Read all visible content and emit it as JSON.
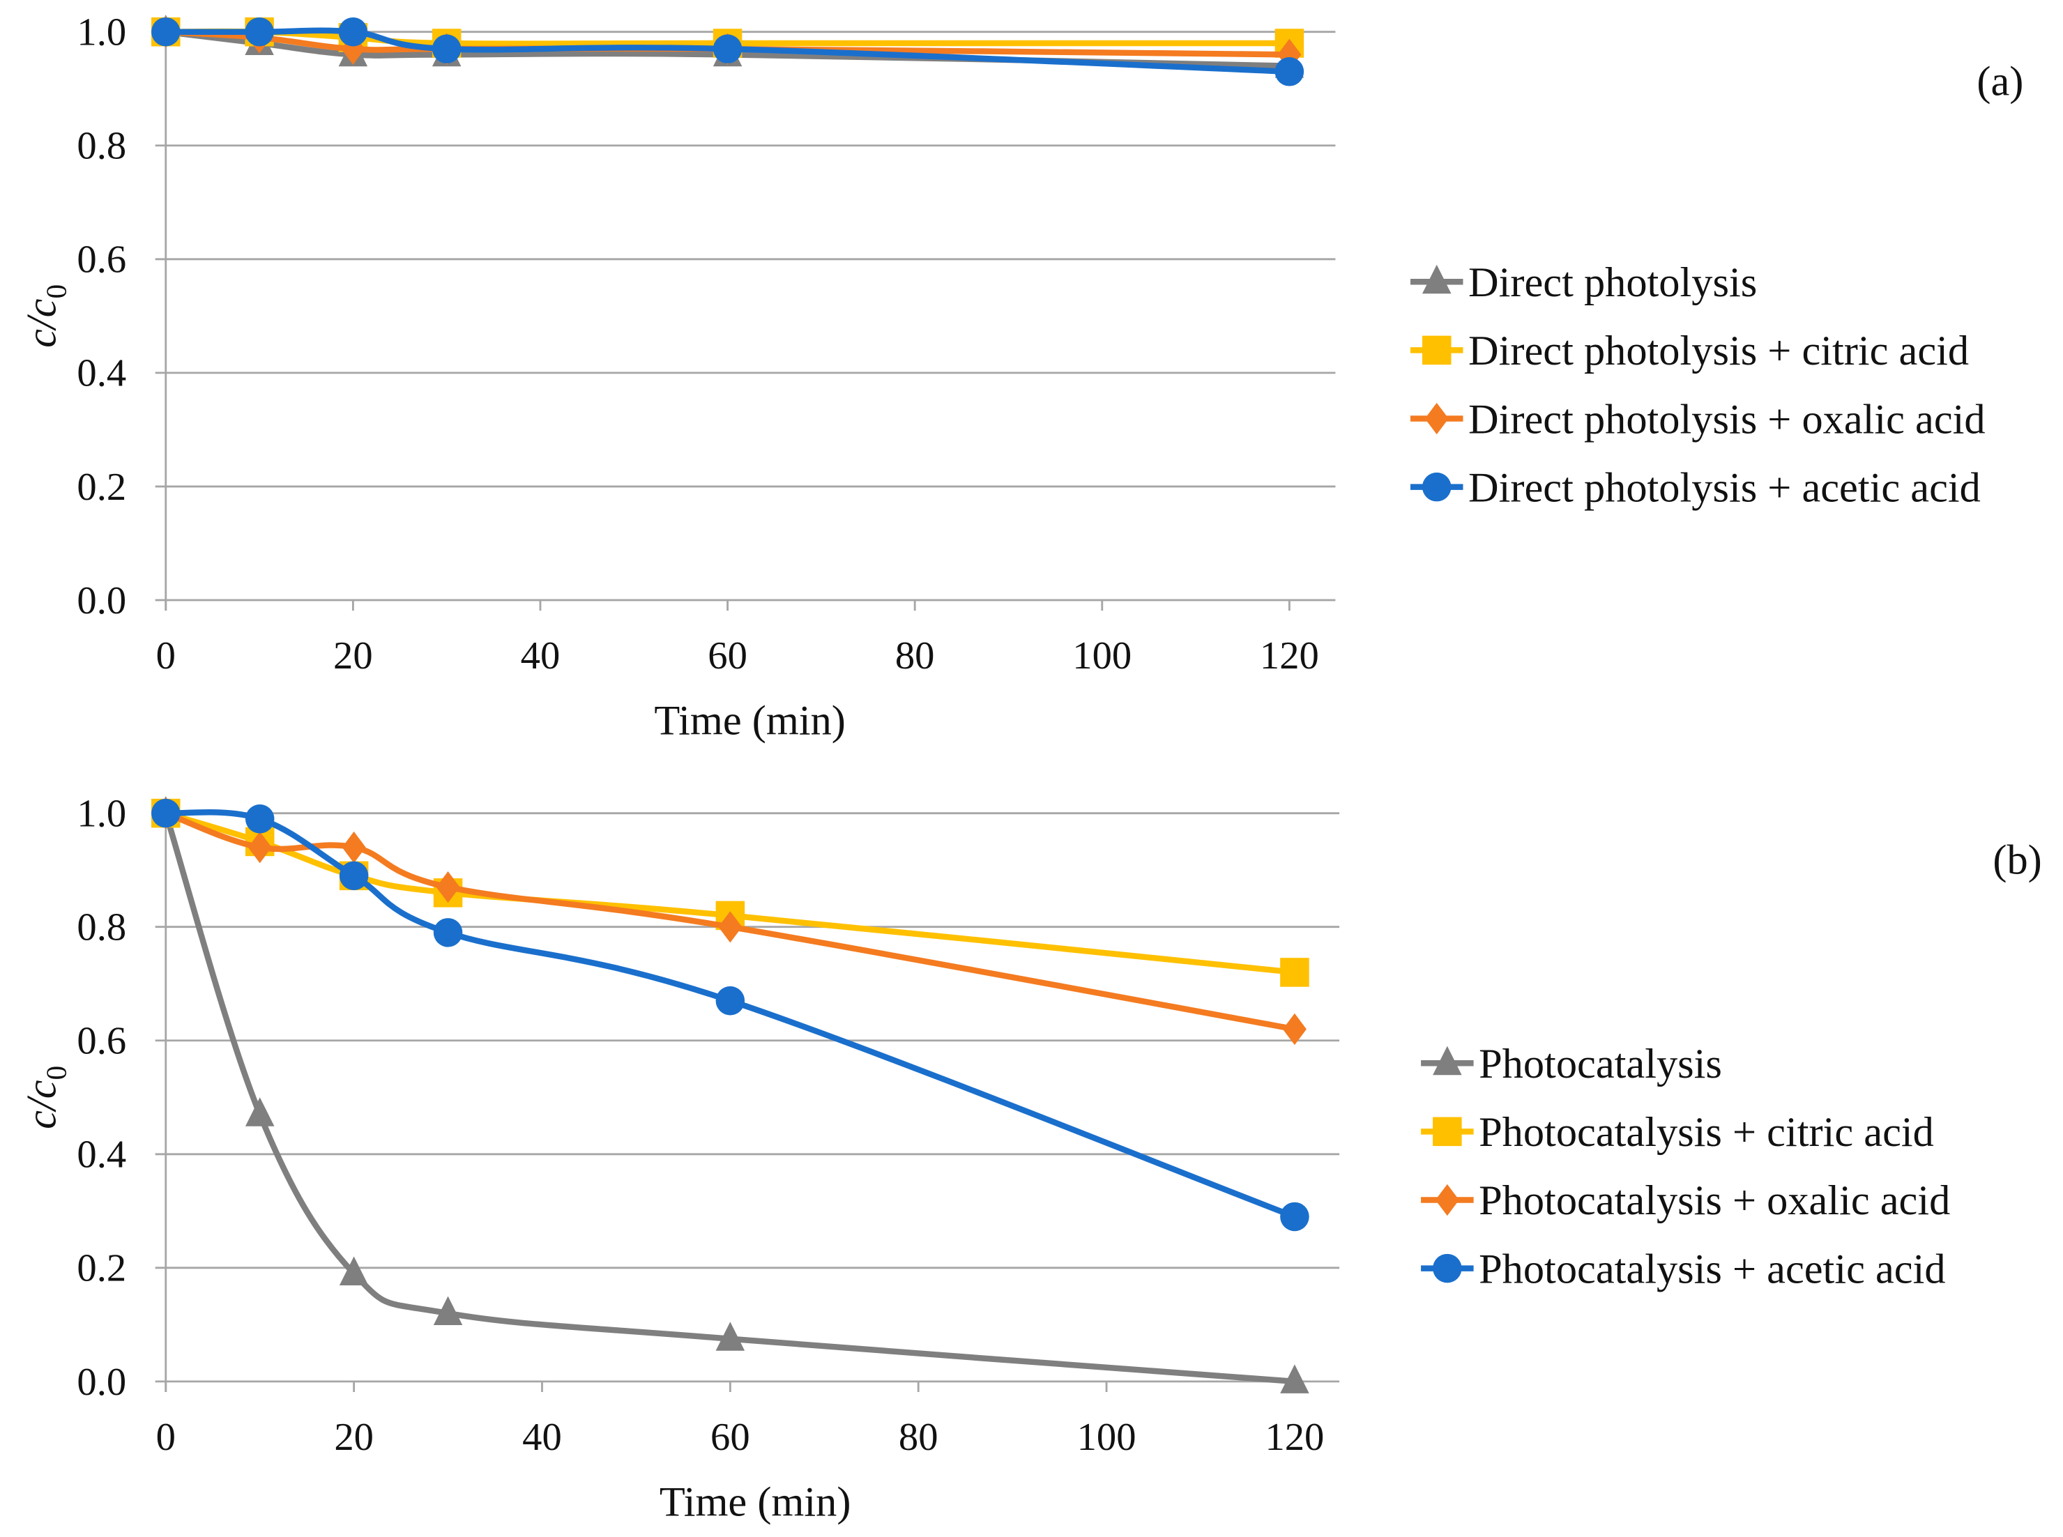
{
  "chart_data": [
    {
      "type": "line",
      "panel_label": "(a)",
      "xlabel": "Time (min)",
      "ylabel": {
        "main": "c/c",
        "sub": "0"
      },
      "x": [
        0,
        10,
        20,
        30,
        60,
        120
      ],
      "xlim": [
        0,
        120
      ],
      "ylim": [
        0,
        1.0
      ],
      "xticks": [
        "0",
        "20",
        "40",
        "60",
        "80",
        "100",
        "120"
      ],
      "yticks": [
        "0.0",
        "0.2",
        "0.4",
        "0.6",
        "0.8",
        "1.0"
      ],
      "grid": true,
      "legend_position": "right",
      "series": [
        {
          "name": "Direct photolysis",
          "color": "#7f7f7f",
          "marker": "triangle",
          "values": [
            1.0,
            0.98,
            0.96,
            0.96,
            0.96,
            0.94
          ]
        },
        {
          "name": "Direct photolysis + citric acid",
          "color": "#ffc000",
          "marker": "square",
          "values": [
            1.0,
            1.0,
            0.99,
            0.98,
            0.98,
            0.98
          ]
        },
        {
          "name": "Direct photolysis + oxalic acid",
          "color": "#f47b20",
          "marker": "diamond",
          "values": [
            1.0,
            0.99,
            0.97,
            0.97,
            0.97,
            0.96
          ]
        },
        {
          "name": "Direct photolysis + acetic acid",
          "color": "#1a6fcc",
          "marker": "circle",
          "values": [
            1.0,
            1.0,
            1.0,
            0.97,
            0.97,
            0.93
          ]
        }
      ]
    },
    {
      "type": "line",
      "panel_label": "(b)",
      "xlabel": "Time (min)",
      "ylabel": {
        "main": "c/c",
        "sub": "0"
      },
      "x": [
        0,
        10,
        20,
        30,
        60,
        120
      ],
      "xlim": [
        0,
        120
      ],
      "ylim": [
        0,
        1.0
      ],
      "xticks": [
        "0",
        "20",
        "40",
        "60",
        "80",
        "100",
        "120"
      ],
      "yticks": [
        "0.0",
        "0.2",
        "0.4",
        "0.6",
        "0.8",
        "1.0"
      ],
      "grid": true,
      "legend_position": "right",
      "series": [
        {
          "name": "Photocatalysis",
          "color": "#7f7f7f",
          "marker": "triangle",
          "values": [
            1.0,
            0.47,
            0.19,
            0.12,
            0.075,
            0.0
          ]
        },
        {
          "name": "Photocatalysis + citric acid",
          "color": "#ffc000",
          "marker": "square",
          "values": [
            1.0,
            0.95,
            0.89,
            0.86,
            0.82,
            0.72
          ]
        },
        {
          "name": "Photocatalysis + oxalic acid",
          "color": "#f47b20",
          "marker": "diamond",
          "values": [
            1.0,
            0.94,
            0.94,
            0.87,
            0.8,
            0.62
          ]
        },
        {
          "name": "Photocatalysis + acetic acid",
          "color": "#1a6fcc",
          "marker": "circle",
          "values": [
            1.0,
            0.99,
            0.89,
            0.79,
            0.67,
            0.29
          ]
        }
      ]
    }
  ]
}
